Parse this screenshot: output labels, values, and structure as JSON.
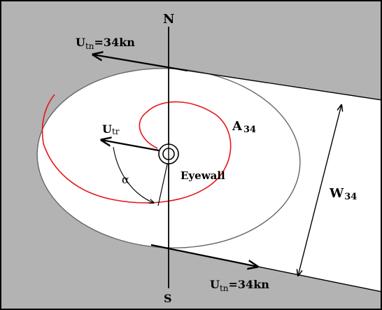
{
  "colors": {
    "background": "#b3b3b3",
    "swath": "#ffffff",
    "outline": "#000000",
    "ellipse_stroke": "#666666",
    "spiral": "#e8141c",
    "frame": "#000000"
  },
  "labels": {
    "north": "N",
    "south": "S",
    "utn_top_main": "U",
    "utn_top_sub": "tn",
    "utn_top_value": "=34kn",
    "utn_bottom_main": "U",
    "utn_bottom_sub": "tn",
    "utn_bottom_value": "=34kn",
    "utr_main": "U",
    "utr_sub": "tr",
    "alpha": "α",
    "area_main": "A",
    "area_sub": "34",
    "eyewall": "Eyewall",
    "width_main": "W",
    "width_sub": "34"
  }
}
